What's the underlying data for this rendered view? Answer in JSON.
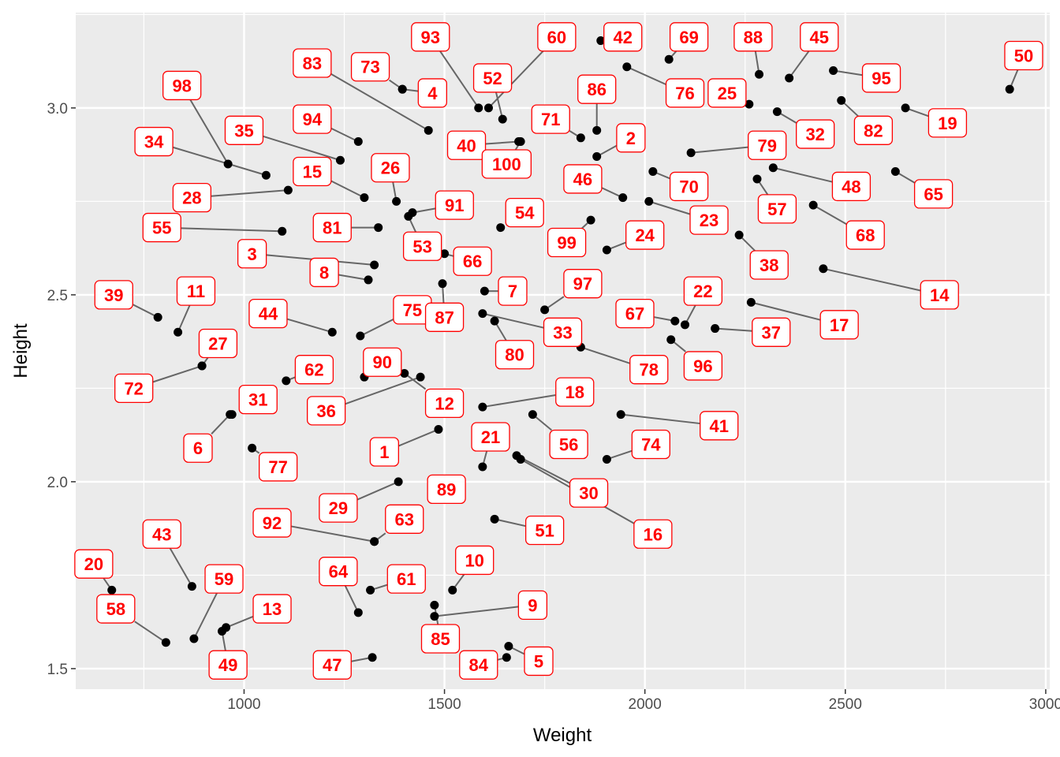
{
  "chart_data": {
    "type": "scatter",
    "xlabel": "Weight",
    "ylabel": "Height",
    "xlim": [
      580,
      3010
    ],
    "ylim": [
      1.445,
      3.255
    ],
    "xticks": [
      1000,
      1500,
      2000,
      2500,
      3000
    ],
    "xtick_labels": [
      "1000",
      "1500",
      "2000",
      "2500",
      "3000"
    ],
    "yticks": [
      1.5,
      2.0,
      2.5,
      3.0
    ],
    "ytick_labels": [
      "1.5",
      "2.0",
      "2.5",
      "3.0"
    ],
    "grid": true,
    "legend": "none",
    "colors": {
      "panel": "#ebebeb",
      "grid": "#ffffff",
      "point": "#000000",
      "label_text": "#ff0000",
      "label_border": "#ff0000",
      "segment": "#666666"
    },
    "points": [
      {
        "label": "1",
        "x": 1485,
        "y": 2.14,
        "lx": 1350,
        "ly": 2.08
      },
      {
        "label": "2",
        "x": 1880,
        "y": 2.87,
        "lx": 1965,
        "ly": 2.92
      },
      {
        "label": "3",
        "x": 1325,
        "y": 2.58,
        "lx": 1020,
        "ly": 2.61
      },
      {
        "label": "4",
        "x": 1395,
        "y": 3.05,
        "lx": 1470,
        "ly": 3.04
      },
      {
        "label": "5",
        "x": 1660,
        "y": 1.56,
        "lx": 1735,
        "ly": 1.52
      },
      {
        "label": "6",
        "x": 965,
        "y": 2.18,
        "lx": 885,
        "ly": 2.09
      },
      {
        "label": "7",
        "x": 1600,
        "y": 2.51,
        "lx": 1670,
        "ly": 2.51
      },
      {
        "label": "8",
        "x": 1310,
        "y": 2.54,
        "lx": 1200,
        "ly": 2.56
      },
      {
        "label": "9",
        "x": 1475,
        "y": 1.64,
        "lx": 1720,
        "ly": 1.67
      },
      {
        "label": "10",
        "x": 1520,
        "y": 1.71,
        "lx": 1575,
        "ly": 1.79
      },
      {
        "label": "11",
        "x": 835,
        "y": 2.4,
        "lx": 880,
        "ly": 2.51
      },
      {
        "label": "12",
        "x": 1400,
        "y": 2.29,
        "lx": 1500,
        "ly": 2.21
      },
      {
        "label": "13",
        "x": 955,
        "y": 1.61,
        "lx": 1070,
        "ly": 1.66
      },
      {
        "label": "14",
        "x": 2445,
        "y": 2.57,
        "lx": 2735,
        "ly": 2.5
      },
      {
        "label": "15",
        "x": 1300,
        "y": 2.76,
        "lx": 1170,
        "ly": 2.83
      },
      {
        "label": "16",
        "x": 1690,
        "y": 2.06,
        "lx": 2020,
        "ly": 1.86
      },
      {
        "label": "17",
        "x": 2265,
        "y": 2.48,
        "lx": 2485,
        "ly": 2.42
      },
      {
        "label": "18",
        "x": 1595,
        "y": 2.2,
        "lx": 1825,
        "ly": 2.24
      },
      {
        "label": "19",
        "x": 2650,
        "y": 3.0,
        "lx": 2755,
        "ly": 2.96
      },
      {
        "label": "20",
        "x": 670,
        "y": 1.71,
        "lx": 625,
        "ly": 1.78
      },
      {
        "label": "21",
        "x": 1595,
        "y": 2.04,
        "lx": 1615,
        "ly": 2.12
      },
      {
        "label": "22",
        "x": 2100,
        "y": 2.42,
        "lx": 2145,
        "ly": 2.51
      },
      {
        "label": "23",
        "x": 2010,
        "y": 2.75,
        "lx": 2160,
        "ly": 2.7
      },
      {
        "label": "24",
        "x": 1905,
        "y": 2.62,
        "lx": 2000,
        "ly": 2.66
      },
      {
        "label": "25",
        "x": 2260,
        "y": 3.01,
        "lx": 2205,
        "ly": 3.04
      },
      {
        "label": "26",
        "x": 1380,
        "y": 2.75,
        "lx": 1365,
        "ly": 2.84
      },
      {
        "label": "27",
        "x": 895,
        "y": 2.31,
        "lx": 935,
        "ly": 2.37
      },
      {
        "label": "28",
        "x": 1110,
        "y": 2.78,
        "lx": 870,
        "ly": 2.76
      },
      {
        "label": "29",
        "x": 1385,
        "y": 2.0,
        "lx": 1235,
        "ly": 1.93
      },
      {
        "label": "30",
        "x": 1680,
        "y": 2.07,
        "lx": 1860,
        "ly": 1.97
      },
      {
        "label": "31",
        "x": 970,
        "y": 2.18,
        "lx": 1035,
        "ly": 2.22
      },
      {
        "label": "32",
        "x": 2330,
        "y": 2.99,
        "lx": 2425,
        "ly": 2.93
      },
      {
        "label": "33",
        "x": 1595,
        "y": 2.45,
        "lx": 1795,
        "ly": 2.4
      },
      {
        "label": "34",
        "x": 1055,
        "y": 2.82,
        "lx": 775,
        "ly": 2.91
      },
      {
        "label": "35",
        "x": 1240,
        "y": 2.86,
        "lx": 1000,
        "ly": 2.94
      },
      {
        "label": "36",
        "x": 1440,
        "y": 2.28,
        "lx": 1205,
        "ly": 2.19
      },
      {
        "label": "37",
        "x": 2175,
        "y": 2.41,
        "lx": 2315,
        "ly": 2.4
      },
      {
        "label": "38",
        "x": 2235,
        "y": 2.66,
        "lx": 2310,
        "ly": 2.58
      },
      {
        "label": "39",
        "x": 785,
        "y": 2.44,
        "lx": 675,
        "ly": 2.5
      },
      {
        "label": "40",
        "x": 1685,
        "y": 2.91,
        "lx": 1555,
        "ly": 2.9
      },
      {
        "label": "41",
        "x": 1940,
        "y": 2.18,
        "lx": 2185,
        "ly": 2.15
      },
      {
        "label": "42",
        "x": 1890,
        "y": 3.18,
        "lx": 1945,
        "ly": 3.19
      },
      {
        "label": "43",
        "x": 870,
        "y": 1.72,
        "lx": 795,
        "ly": 1.86
      },
      {
        "label": "44",
        "x": 1220,
        "y": 2.4,
        "lx": 1060,
        "ly": 2.45
      },
      {
        "label": "45",
        "x": 2360,
        "y": 3.08,
        "lx": 2435,
        "ly": 3.19
      },
      {
        "label": "46",
        "x": 1945,
        "y": 2.76,
        "lx": 1845,
        "ly": 2.81
      },
      {
        "label": "47",
        "x": 1320,
        "y": 1.53,
        "lx": 1220,
        "ly": 1.51
      },
      {
        "label": "48",
        "x": 2320,
        "y": 2.84,
        "lx": 2515,
        "ly": 2.79
      },
      {
        "label": "49",
        "x": 945,
        "y": 1.6,
        "lx": 960,
        "ly": 1.51
      },
      {
        "label": "50",
        "x": 2910,
        "y": 3.05,
        "lx": 2945,
        "ly": 3.14
      },
      {
        "label": "51",
        "x": 1625,
        "y": 1.9,
        "lx": 1750,
        "ly": 1.87
      },
      {
        "label": "52",
        "x": 1645,
        "y": 2.97,
        "lx": 1620,
        "ly": 3.08
      },
      {
        "label": "53",
        "x": 1410,
        "y": 2.71,
        "lx": 1445,
        "ly": 2.63
      },
      {
        "label": "54",
        "x": 1640,
        "y": 2.68,
        "lx": 1700,
        "ly": 2.72
      },
      {
        "label": "55",
        "x": 1095,
        "y": 2.67,
        "lx": 795,
        "ly": 2.68
      },
      {
        "label": "56",
        "x": 1720,
        "y": 2.18,
        "lx": 1810,
        "ly": 2.1
      },
      {
        "label": "57",
        "x": 2280,
        "y": 2.81,
        "lx": 2330,
        "ly": 2.73
      },
      {
        "label": "58",
        "x": 805,
        "y": 1.57,
        "lx": 680,
        "ly": 1.66
      },
      {
        "label": "59",
        "x": 875,
        "y": 1.58,
        "lx": 950,
        "ly": 1.74
      },
      {
        "label": "60",
        "x": 1610,
        "y": 3.0,
        "lx": 1780,
        "ly": 3.19
      },
      {
        "label": "61",
        "x": 1315,
        "y": 1.71,
        "lx": 1405,
        "ly": 1.74
      },
      {
        "label": "62",
        "x": 1105,
        "y": 2.27,
        "lx": 1175,
        "ly": 2.3
      },
      {
        "label": "63",
        "x": 1325,
        "y": 1.84,
        "lx": 1400,
        "ly": 1.9
      },
      {
        "label": "64",
        "x": 1285,
        "y": 1.65,
        "lx": 1235,
        "ly": 1.76
      },
      {
        "label": "65",
        "x": 2625,
        "y": 2.83,
        "lx": 2720,
        "ly": 2.77
      },
      {
        "label": "66",
        "x": 1500,
        "y": 2.61,
        "lx": 1570,
        "ly": 2.59
      },
      {
        "label": "67",
        "x": 2075,
        "y": 2.43,
        "lx": 1975,
        "ly": 2.45
      },
      {
        "label": "68",
        "x": 2420,
        "y": 2.74,
        "lx": 2550,
        "ly": 2.66
      },
      {
        "label": "69",
        "x": 2060,
        "y": 3.13,
        "lx": 2110,
        "ly": 3.19
      },
      {
        "label": "70",
        "x": 2020,
        "y": 2.83,
        "lx": 2110,
        "ly": 2.79
      },
      {
        "label": "71",
        "x": 1840,
        "y": 2.92,
        "lx": 1765,
        "ly": 2.97
      },
      {
        "label": "72",
        "x": 895,
        "y": 2.31,
        "lx": 725,
        "ly": 2.25
      },
      {
        "label": "73",
        "x": 1395,
        "y": 3.05,
        "lx": 1315,
        "ly": 3.11
      },
      {
        "label": "74",
        "x": 1905,
        "y": 2.06,
        "lx": 2015,
        "ly": 2.1
      },
      {
        "label": "75",
        "x": 1290,
        "y": 2.39,
        "lx": 1420,
        "ly": 2.46
      },
      {
        "label": "76",
        "x": 1955,
        "y": 3.11,
        "lx": 2100,
        "ly": 3.04
      },
      {
        "label": "77",
        "x": 1020,
        "y": 2.09,
        "lx": 1085,
        "ly": 2.04
      },
      {
        "label": "78",
        "x": 1840,
        "y": 2.36,
        "lx": 2010,
        "ly": 2.3
      },
      {
        "label": "79",
        "x": 2115,
        "y": 2.88,
        "lx": 2305,
        "ly": 2.9
      },
      {
        "label": "80",
        "x": 1625,
        "y": 2.43,
        "lx": 1675,
        "ly": 2.34
      },
      {
        "label": "81",
        "x": 1335,
        "y": 2.68,
        "lx": 1220,
        "ly": 2.68
      },
      {
        "label": "82",
        "x": 2490,
        "y": 3.02,
        "lx": 2570,
        "ly": 2.94
      },
      {
        "label": "83",
        "x": 1460,
        "y": 2.94,
        "lx": 1170,
        "ly": 3.12
      },
      {
        "label": "84",
        "x": 1655,
        "y": 1.53,
        "lx": 1585,
        "ly": 1.51
      },
      {
        "label": "85",
        "x": 1475,
        "y": 1.67,
        "lx": 1490,
        "ly": 1.58
      },
      {
        "label": "86",
        "x": 1880,
        "y": 2.94,
        "lx": 1880,
        "ly": 3.05
      },
      {
        "label": "87",
        "x": 1495,
        "y": 2.53,
        "lx": 1500,
        "ly": 2.44
      },
      {
        "label": "88",
        "x": 2285,
        "y": 3.09,
        "lx": 2270,
        "ly": 3.19
      },
      {
        "label": "89",
        "x": 1510,
        "y": 2.0,
        "lx": 1505,
        "ly": 1.98
      },
      {
        "label": "90",
        "x": 1300,
        "y": 2.28,
        "lx": 1345,
        "ly": 2.32
      },
      {
        "label": "91",
        "x": 1420,
        "y": 2.72,
        "lx": 1525,
        "ly": 2.74
      },
      {
        "label": "92",
        "x": 1325,
        "y": 1.84,
        "lx": 1070,
        "ly": 1.89
      },
      {
        "label": "93",
        "x": 1585,
        "y": 3.0,
        "lx": 1465,
        "ly": 3.19
      },
      {
        "label": "94",
        "x": 1285,
        "y": 2.91,
        "lx": 1170,
        "ly": 2.97
      },
      {
        "label": "95",
        "x": 2470,
        "y": 3.1,
        "lx": 2590,
        "ly": 3.08
      },
      {
        "label": "96",
        "x": 2065,
        "y": 2.38,
        "lx": 2145,
        "ly": 2.31
      },
      {
        "label": "97",
        "x": 1750,
        "y": 2.46,
        "lx": 1845,
        "ly": 2.53
      },
      {
        "label": "98",
        "x": 960,
        "y": 2.85,
        "lx": 845,
        "ly": 3.06
      },
      {
        "label": "99",
        "x": 1865,
        "y": 2.7,
        "lx": 1805,
        "ly": 2.64
      },
      {
        "label": "100",
        "x": 1690,
        "y": 2.91,
        "lx": 1655,
        "ly": 2.85
      }
    ]
  }
}
